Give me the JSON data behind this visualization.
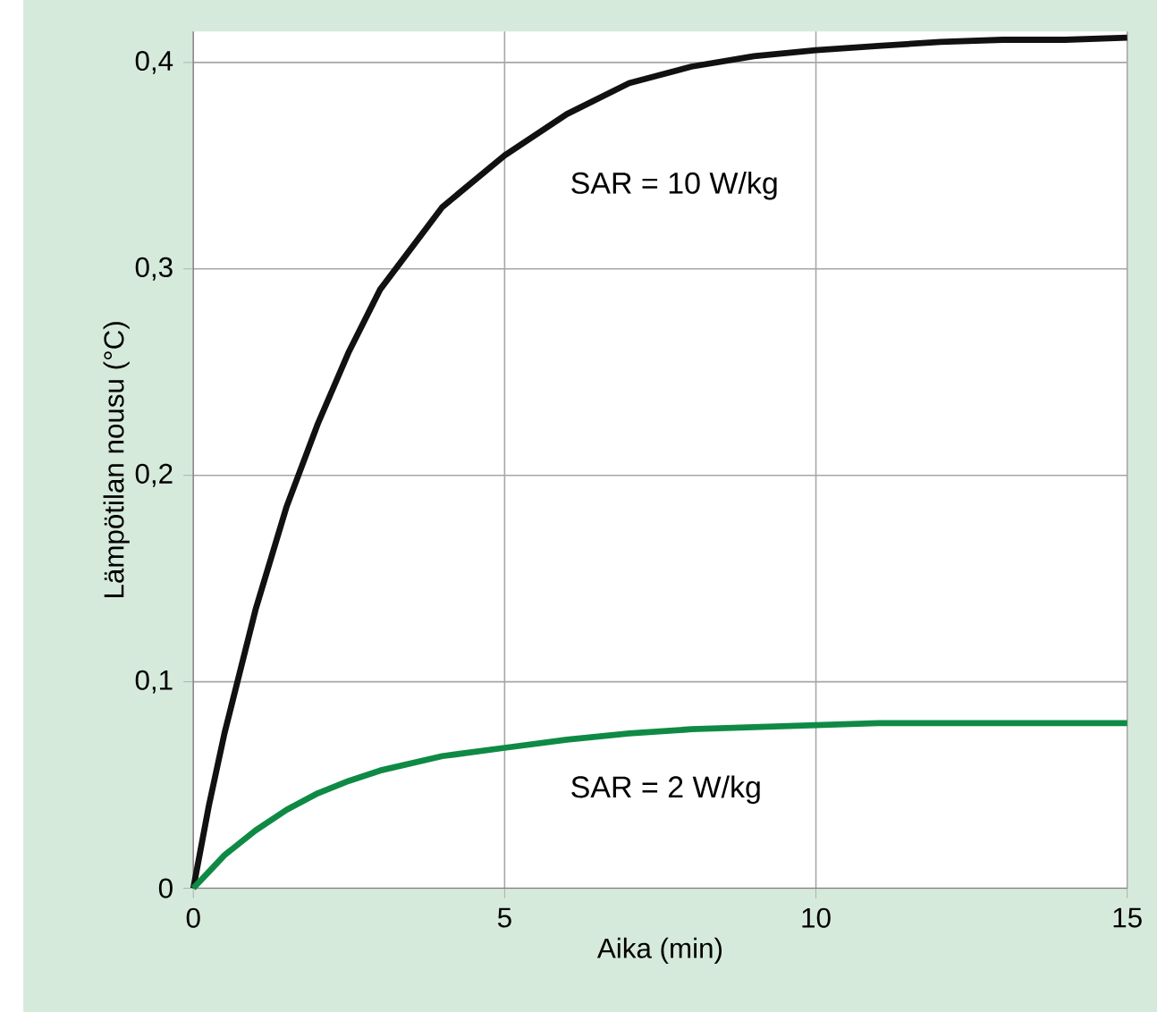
{
  "chart_data": {
    "type": "line",
    "xlabel": "Aika (min)",
    "ylabel": "Lämpötilan nousu (°C)",
    "x": [
      0,
      0.25,
      0.5,
      1,
      1.5,
      2,
      2.5,
      3,
      4,
      5,
      6,
      7,
      8,
      9,
      10,
      11,
      12,
      13,
      14,
      15
    ],
    "series": [
      {
        "name": "SAR = 10 W/kg",
        "color": "#111111",
        "values": [
          0,
          0.04,
          0.075,
          0.135,
          0.185,
          0.225,
          0.26,
          0.29,
          0.33,
          0.355,
          0.375,
          0.39,
          0.398,
          0.403,
          0.406,
          0.408,
          0.41,
          0.411,
          0.411,
          0.412
        ]
      },
      {
        "name": "SAR = 2 W/kg",
        "color": "#0f8a45",
        "values": [
          0,
          0.008,
          0.016,
          0.028,
          0.038,
          0.046,
          0.052,
          0.057,
          0.064,
          0.068,
          0.072,
          0.075,
          0.077,
          0.078,
          0.079,
          0.08,
          0.08,
          0.08,
          0.08,
          0.08
        ]
      }
    ],
    "xlim": [
      0,
      15
    ],
    "xticks": [
      0,
      5,
      10,
      15
    ],
    "ylim": [
      0,
      0.415
    ],
    "yticks": [
      {
        "value": 0,
        "label": "0"
      },
      {
        "value": 0.1,
        "label": "0,1"
      },
      {
        "value": 0.2,
        "label": "0,2"
      },
      {
        "value": 0.3,
        "label": "0,3"
      },
      {
        "value": 0.4,
        "label": "0,4"
      }
    ],
    "grid": true,
    "legend": false,
    "marker": "none",
    "line_style": "solid"
  }
}
